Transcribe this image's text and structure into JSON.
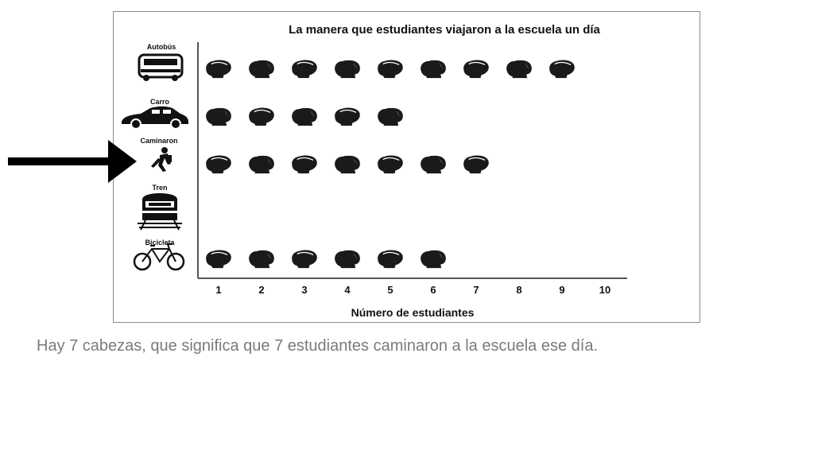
{
  "chart_data": {
    "type": "pictograph",
    "title": "La manera que estudiantes viajaron a la escuela un día",
    "xlabel": "Número de estudiantes",
    "ylabel": "",
    "xlim": [
      1,
      10
    ],
    "x_ticks": [
      "1",
      "2",
      "3",
      "4",
      "5",
      "6",
      "7",
      "8",
      "9",
      "10"
    ],
    "categories": [
      "Autobús",
      "Carro",
      "Caminaron",
      "Tren",
      "Bicicleta"
    ],
    "category_icons": [
      "bus-icon",
      "car-icon",
      "walker-icon",
      "train-icon",
      "bicycle-icon"
    ],
    "values": [
      9,
      5,
      7,
      0,
      6
    ],
    "marker_icon": "student-head-icon",
    "highlighted_category": "Caminaron"
  },
  "caption": "Hay 7 cabezas, que significa que 7 estudiantes caminaron a la escuela ese día.",
  "colors": {
    "ink": "#1a1a1a",
    "caption": "#7b7b7b",
    "frame": "#8a8a8a",
    "arrow": "#000000"
  }
}
